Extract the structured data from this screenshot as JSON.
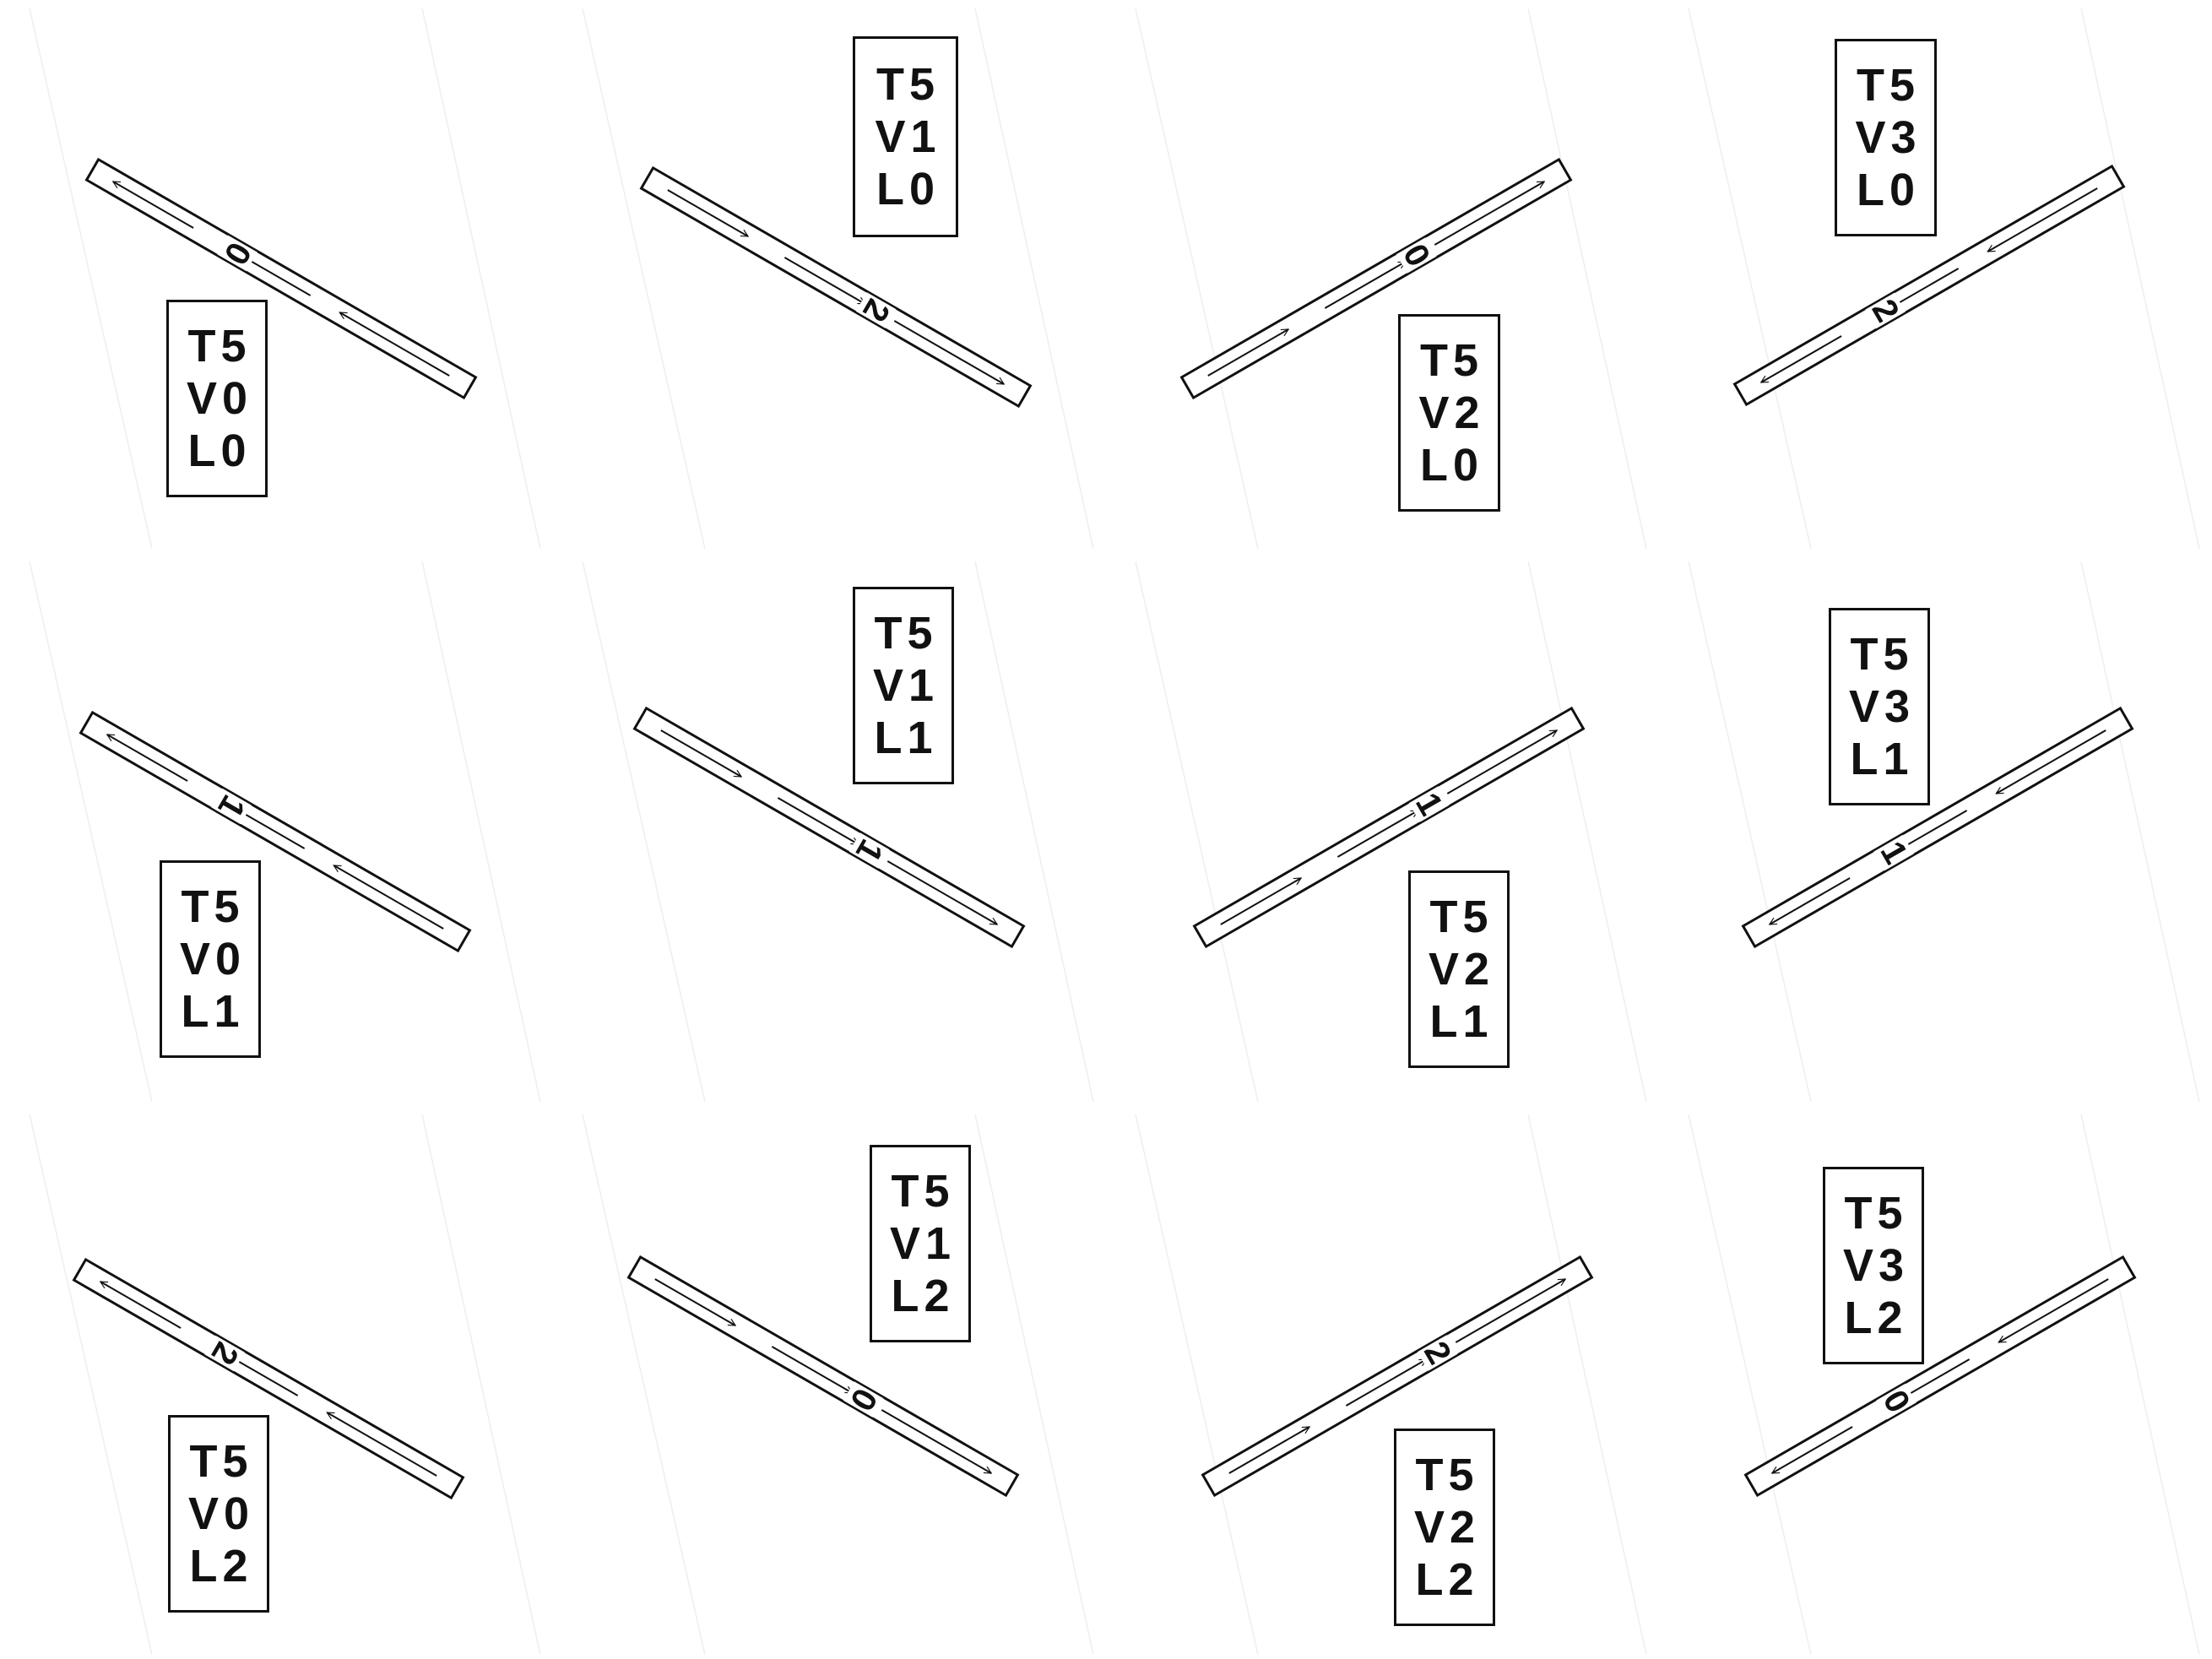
{
  "colors": {
    "ink": "#111111",
    "background": "#ffffff",
    "faint_grid": "#eeeeee"
  },
  "tiles": [
    {
      "id": "t5-v0-l0",
      "strip_number": "0",
      "arrow_direction": "left",
      "lines": [
        "T5",
        "V0",
        "L0"
      ]
    },
    {
      "id": "t5-v1-l0",
      "strip_number": "2",
      "arrow_direction": "right",
      "lines": [
        "T5",
        "V1",
        "L0"
      ]
    },
    {
      "id": "t5-v2-l0",
      "strip_number": "0",
      "arrow_direction": "right",
      "lines": [
        "T5",
        "V2",
        "L0"
      ]
    },
    {
      "id": "t5-v3-l0",
      "strip_number": "2",
      "arrow_direction": "left",
      "lines": [
        "T5",
        "V3",
        "L0"
      ]
    },
    {
      "id": "t5-v0-l1",
      "strip_number": "1",
      "arrow_direction": "left",
      "lines": [
        "T5",
        "V0",
        "L1"
      ]
    },
    {
      "id": "t5-v1-l1",
      "strip_number": "1",
      "arrow_direction": "right",
      "lines": [
        "T5",
        "V1",
        "L1"
      ]
    },
    {
      "id": "t5-v2-l1",
      "strip_number": "1",
      "arrow_direction": "right",
      "lines": [
        "T5",
        "V2",
        "L1"
      ]
    },
    {
      "id": "t5-v3-l1",
      "strip_number": "1",
      "arrow_direction": "left",
      "lines": [
        "T5",
        "V3",
        "L1"
      ]
    },
    {
      "id": "t5-v0-l2",
      "strip_number": "2",
      "arrow_direction": "left",
      "lines": [
        "T5",
        "V0",
        "L2"
      ]
    },
    {
      "id": "t5-v1-l2",
      "strip_number": "0",
      "arrow_direction": "right",
      "lines": [
        "T5",
        "V1",
        "L2"
      ]
    },
    {
      "id": "t5-v2-l2",
      "strip_number": "2",
      "arrow_direction": "right",
      "lines": [
        "T5",
        "V2",
        "L2"
      ]
    },
    {
      "id": "t5-v3-l2",
      "strip_number": "0",
      "arrow_direction": "left",
      "lines": [
        "T5",
        "V3",
        "L2"
      ]
    }
  ]
}
